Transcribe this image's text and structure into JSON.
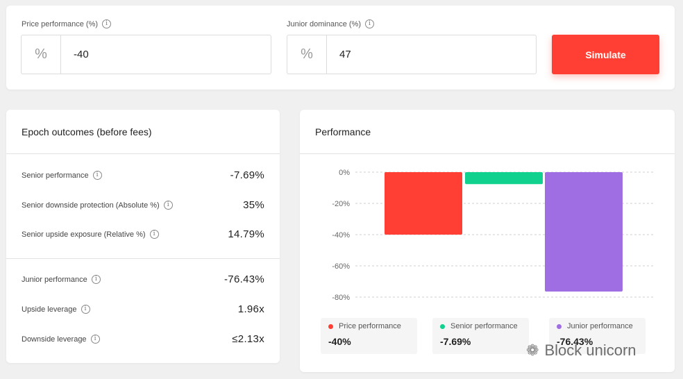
{
  "inputs": {
    "price_performance": {
      "label": "Price performance (%)",
      "prefix": "%",
      "value": "-40"
    },
    "junior_dominance": {
      "label": "Junior dominance (%)",
      "prefix": "%",
      "value": "47"
    },
    "simulate_label": "Simulate"
  },
  "outcomes": {
    "title": "Epoch outcomes (before fees)",
    "senior": [
      {
        "label": "Senior performance",
        "value": "-7.69%"
      },
      {
        "label": "Senior downside protection (Absolute %)",
        "value": "35%"
      },
      {
        "label": "Senior upside exposure (Relative %)",
        "value": "14.79%"
      }
    ],
    "junior": [
      {
        "label": "Junior performance",
        "value": "-76.43%"
      },
      {
        "label": "Upside leverage",
        "value": "1.96x"
      },
      {
        "label": "Downside leverage",
        "value": "≤2.13x"
      }
    ]
  },
  "performance": {
    "title": "Performance",
    "legend": [
      {
        "name": "Price performance",
        "value": "-40%",
        "color": "#ff3f33"
      },
      {
        "name": "Senior performance",
        "value": "-7.69%",
        "color": "#10d28e"
      },
      {
        "name": "Junior performance",
        "value": "-76.43%",
        "color": "#9f6ee3"
      }
    ]
  },
  "chart_data": {
    "type": "bar",
    "categories": [
      "Price performance",
      "Senior performance",
      "Junior performance"
    ],
    "values": [
      -40,
      -7.69,
      -76.43
    ],
    "colors": [
      "#ff3f33",
      "#10d28e",
      "#9f6ee3"
    ],
    "yticks": [
      "0%",
      "-20%",
      "-40%",
      "-60%",
      "-80%"
    ],
    "ytick_values": [
      0,
      -20,
      -40,
      -60,
      -80
    ],
    "ylim": [
      -80,
      0
    ],
    "grid": true
  },
  "watermark": {
    "icon": "wechat-icon",
    "text": "Block unicorn"
  },
  "icons": {
    "info": "i"
  }
}
